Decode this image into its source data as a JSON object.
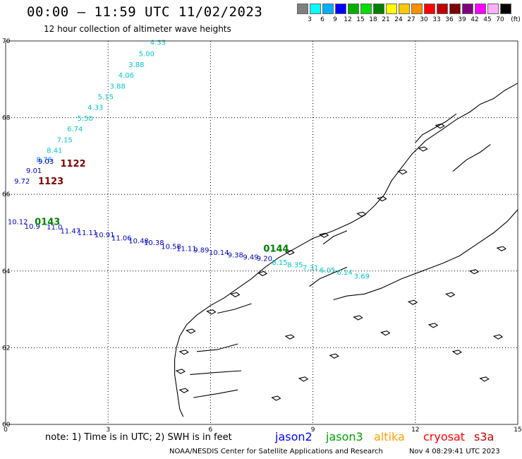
{
  "header": {
    "title": "00:00 – 11:59 UTC 11/02/2023",
    "subtitle": "12 hour collection of altimeter wave heights"
  },
  "colorbar": {
    "unit": "(ft)",
    "labels": [
      "3",
      "6",
      "9",
      "12",
      "15",
      "18",
      "21",
      "24",
      "27",
      "30",
      "33",
      "36",
      "39",
      "42",
      "45",
      "70"
    ],
    "colors": [
      "#808080",
      "#00ffff",
      "#00b0ff",
      "#0000ff",
      "#00b000",
      "#00e000",
      "#008000",
      "#ffff00",
      "#ffc800",
      "#ff9000",
      "#ff0000",
      "#c00000",
      "#800000",
      "#800080",
      "#ff00ff",
      "#ffb0ff",
      "#000000"
    ]
  },
  "axes": {
    "x_ticks": [
      "0",
      "3",
      "6",
      "9",
      "12",
      "15"
    ],
    "y_ticks": [
      "70",
      "68",
      "66",
      "64",
      "62",
      "60"
    ]
  },
  "measurements": [
    {
      "label": "4.33",
      "color": "#00c8c8",
      "x": 4.23,
      "y": 69.9
    },
    {
      "label": "5.00",
      "color": "#00c8c8",
      "x": 3.9,
      "y": 69.6
    },
    {
      "label": "3.88",
      "color": "#00c8c8",
      "x": 3.6,
      "y": 69.32
    },
    {
      "label": "4.06",
      "color": "#00c8c8",
      "x": 3.3,
      "y": 69.04
    },
    {
      "label": "3.88",
      "color": "#00c8c8",
      "x": 3.05,
      "y": 68.76
    },
    {
      "label": "5.15",
      "color": "#00c8c8",
      "x": 2.7,
      "y": 68.48
    },
    {
      "label": "4.33",
      "color": "#00c8c8",
      "x": 2.4,
      "y": 68.2
    },
    {
      "label": "5.50",
      "color": "#00c8c8",
      "x": 2.1,
      "y": 67.92
    },
    {
      "label": "6.74",
      "color": "#00c8c8",
      "x": 1.8,
      "y": 67.64
    },
    {
      "label": "7.15",
      "color": "#00c8c8",
      "x": 1.5,
      "y": 67.36
    },
    {
      "label": "8.41",
      "color": "#00c8c8",
      "x": 1.2,
      "y": 67.08
    },
    {
      "label": "8.76",
      "color": "#0080ff",
      "x": 0.9,
      "y": 66.84
    },
    {
      "label": "9.03",
      "color": "#0000c0",
      "x": 0.95,
      "y": 66.8
    },
    {
      "label": "9.01",
      "color": "#0000c0",
      "x": 0.6,
      "y": 66.56
    },
    {
      "label": "9.72",
      "color": "#0000c0",
      "x": 0.25,
      "y": 66.28
    },
    {
      "label": "10.12",
      "color": "#0000c0",
      "x": 0.06,
      "y": 65.22
    },
    {
      "label": "10.9",
      "color": "#0000c0",
      "x": 0.55,
      "y": 65.1
    },
    {
      "label": "11.0",
      "color": "#0000c0",
      "x": 1.2,
      "y": 65.08
    },
    {
      "label": "11.47",
      "color": "#0000c0",
      "x": 1.6,
      "y": 64.98
    },
    {
      "label": "11.11",
      "color": "#0000c0",
      "x": 2.1,
      "y": 64.94
    },
    {
      "label": "10.91",
      "color": "#0000c0",
      "x": 2.6,
      "y": 64.88
    },
    {
      "label": "11.06",
      "color": "#0000c0",
      "x": 3.1,
      "y": 64.8
    },
    {
      "label": "10.48",
      "color": "#0000c0",
      "x": 3.6,
      "y": 64.72
    },
    {
      "label": "10.38",
      "color": "#0000c0",
      "x": 4.05,
      "y": 64.68
    },
    {
      "label": "10.58",
      "color": "#0000c0",
      "x": 4.55,
      "y": 64.58
    },
    {
      "label": "11.11",
      "color": "#0000c0",
      "x": 5.0,
      "y": 64.52
    },
    {
      "label": "9.89",
      "color": "#0000c0",
      "x": 5.5,
      "y": 64.48
    },
    {
      "label": "10.14",
      "color": "#0000c0",
      "x": 5.95,
      "y": 64.42
    },
    {
      "label": "9.38",
      "color": "#0000c0",
      "x": 6.5,
      "y": 64.36
    },
    {
      "label": "9.49",
      "color": "#0000c0",
      "x": 6.95,
      "y": 64.3
    },
    {
      "label": "9.20",
      "color": "#0000c0",
      "x": 7.35,
      "y": 64.26
    },
    {
      "label": "8.15",
      "color": "#00c8c8",
      "x": 7.8,
      "y": 64.16
    },
    {
      "label": "8.35",
      "color": "#00c8c8",
      "x": 8.25,
      "y": 64.1
    },
    {
      "label": "7.31",
      "color": "#00c8c8",
      "x": 8.7,
      "y": 64.02
    },
    {
      "label": "6.05",
      "color": "#00c8c8",
      "x": 9.2,
      "y": 63.96
    },
    {
      "label": "6.14",
      "color": "#00c8c8",
      "x": 9.7,
      "y": 63.9
    },
    {
      "label": "3.69",
      "color": "#00c8c8",
      "x": 10.2,
      "y": 63.8
    }
  ],
  "pass_labels": [
    {
      "label": "1122",
      "color": "#800000",
      "x": 1.6,
      "y": 66.72
    },
    {
      "label": "1123",
      "color": "#800000",
      "x": 0.95,
      "y": 66.26
    },
    {
      "label": "0143",
      "color": "#008000",
      "x": 0.85,
      "y": 65.2
    },
    {
      "label": "0144",
      "color": "#008000",
      "x": 7.55,
      "y": 64.5
    }
  ],
  "footer": {
    "note": "note:  1) Time is in UTC;  2) SWH is in feet",
    "missions": [
      {
        "name": "jason2",
        "color": "#0000ff"
      },
      {
        "name": "jason3",
        "color": "#00a000"
      },
      {
        "name": "altika",
        "color": "#ffa000"
      },
      {
        "name": "cryosat",
        "color": "#ff0000"
      },
      {
        "name": "s3a",
        "color": "#c00000"
      }
    ],
    "credit": "NOAA/NESDIS Center for Satellite Applications and Research",
    "timestamp": "Nov  4 08:29:41 UTC 2023"
  }
}
